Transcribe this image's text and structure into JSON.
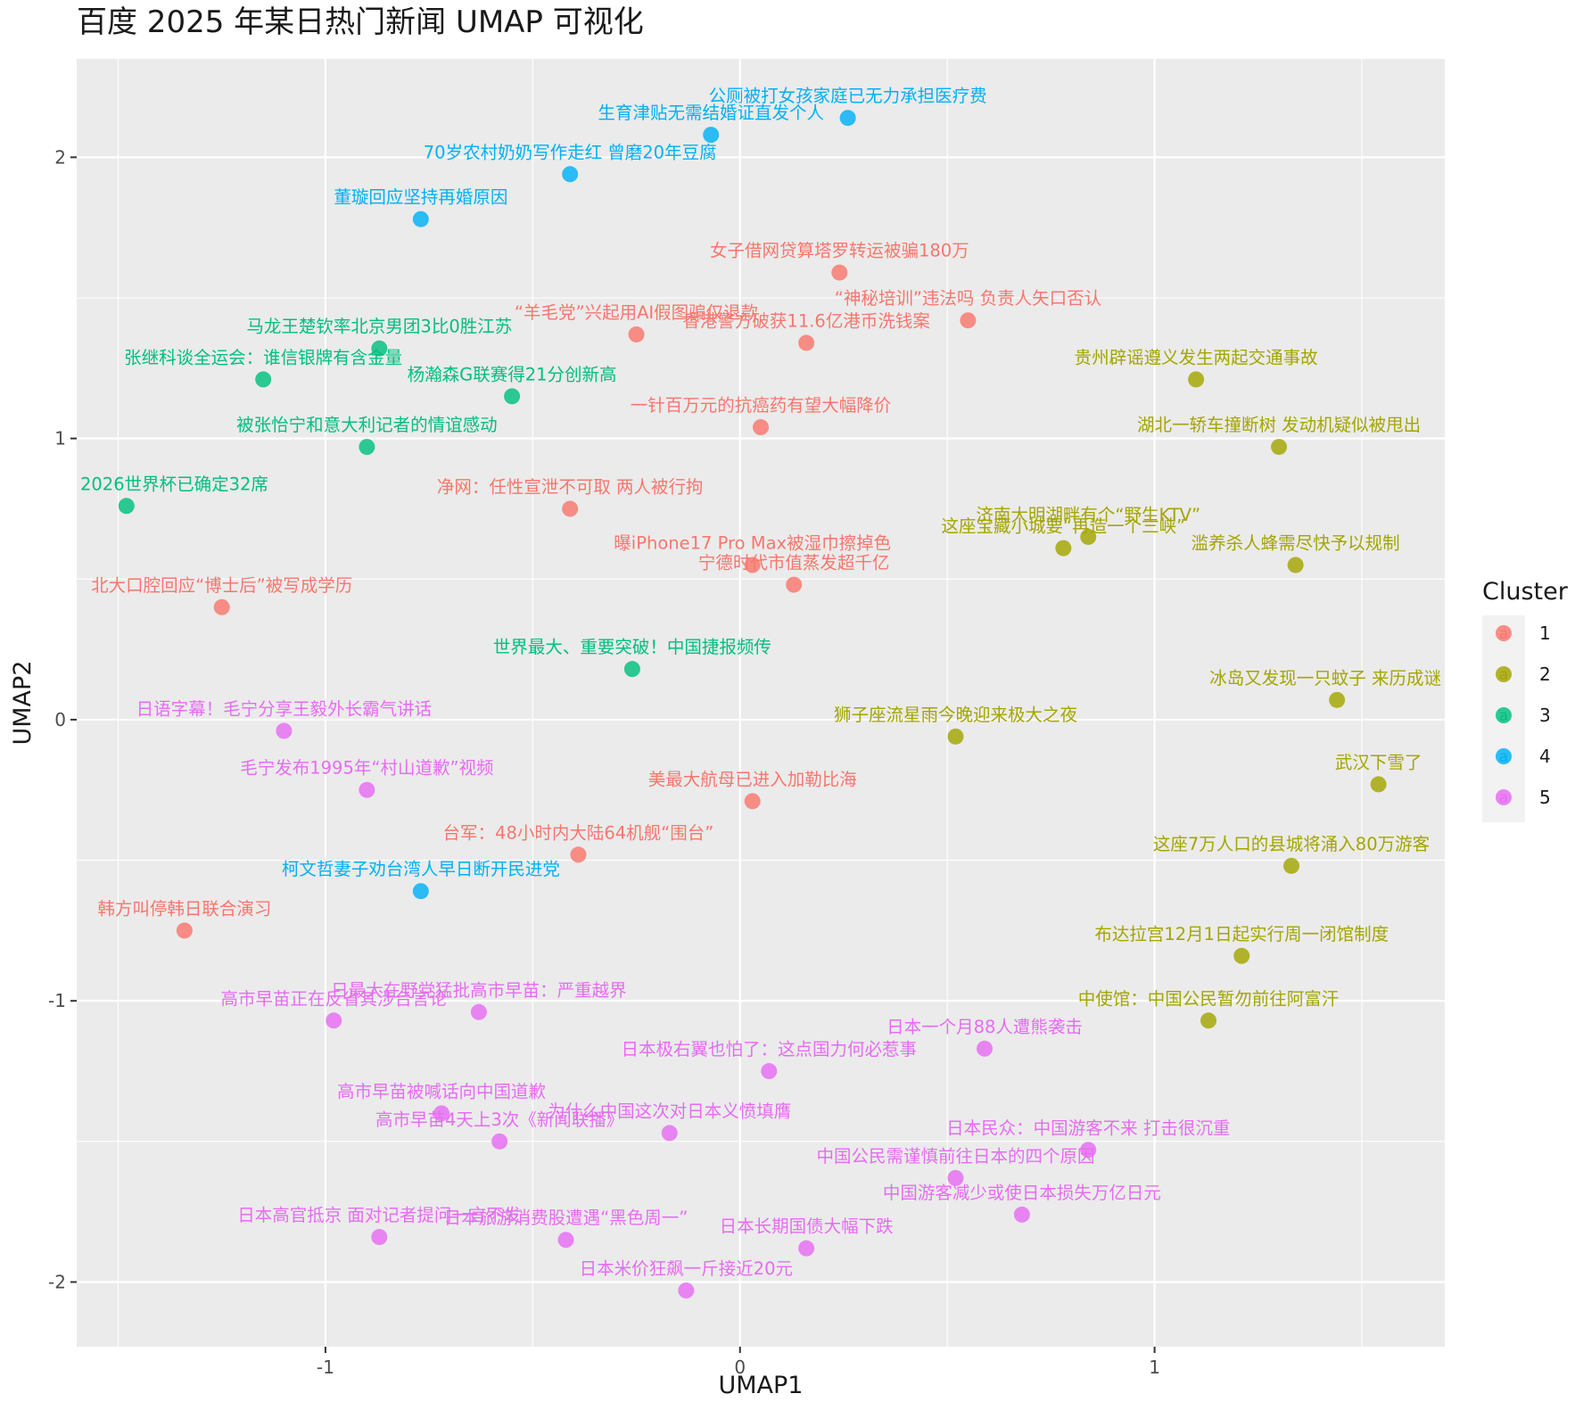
{
  "chart_data": {
    "type": "scatter",
    "title": "百度 2025 年某日热门新闻 UMAP 可视化",
    "xlabel": "UMAP1",
    "ylabel": "UMAP2",
    "xlim": [
      -1.6,
      1.7
    ],
    "ylim": [
      -2.23,
      2.35
    ],
    "x_ticks": [
      {
        "value": -1,
        "label": "-1"
      },
      {
        "value": 0,
        "label": "0"
      },
      {
        "value": 1,
        "label": "1"
      }
    ],
    "y_ticks": [
      {
        "value": -2,
        "label": "-2"
      },
      {
        "value": -1,
        "label": "-1"
      },
      {
        "value": 0,
        "label": "0"
      },
      {
        "value": 1,
        "label": "1"
      },
      {
        "value": 2,
        "label": "2"
      }
    ],
    "grid": true,
    "legend": {
      "title": "Cluster",
      "position": "right",
      "entries": [
        {
          "label": "1",
          "color": "#F8766D"
        },
        {
          "label": "2",
          "color": "#A3A500"
        },
        {
          "label": "3",
          "color": "#00BF7D"
        },
        {
          "label": "4",
          "color": "#00B0F6"
        },
        {
          "label": "5",
          "color": "#E76BF3"
        }
      ]
    },
    "series": [
      {
        "cluster": "1",
        "color": "#F8766D",
        "points": [
          {
            "x": 0.24,
            "y": 1.59,
            "label": "女子借网贷算塔罗转运被骗180万"
          },
          {
            "x": 0.55,
            "y": 1.42,
            "label": "“神秘培训”违法吗 负责人矢口否认"
          },
          {
            "x": -0.25,
            "y": 1.37,
            "label": "“羊毛党”兴起用AI假图骗仅退款"
          },
          {
            "x": 0.16,
            "y": 1.34,
            "label": "香港警方破获11.6亿港币洗钱案"
          },
          {
            "x": 0.05,
            "y": 1.04,
            "label": "一针百万元的抗癌药有望大幅降价"
          },
          {
            "x": -0.41,
            "y": 0.75,
            "label": "净网：任性宣泄不可取 两人被行拘"
          },
          {
            "x": 0.03,
            "y": 0.55,
            "label": "曝iPhone17 Pro Max被湿巾擦掉色"
          },
          {
            "x": 0.13,
            "y": 0.48,
            "label": "宁德时代市值蒸发超千亿"
          },
          {
            "x": -1.25,
            "y": 0.4,
            "label": "北大口腔回应“博士后”被写成学历"
          },
          {
            "x": 0.03,
            "y": -0.29,
            "label": "美最大航母已进入加勒比海"
          },
          {
            "x": -0.39,
            "y": -0.48,
            "label": "台军：48小时内大陆64机舰“围台”"
          },
          {
            "x": -1.34,
            "y": -0.75,
            "label": "韩方叫停韩日联合演习"
          }
        ]
      },
      {
        "cluster": "2",
        "color": "#A3A500",
        "points": [
          {
            "x": 1.1,
            "y": 1.21,
            "label": "贵州辟谣遵义发生两起交通事故"
          },
          {
            "x": 1.3,
            "y": 0.97,
            "label": "湖北一轿车撞断树 发动机疑似被甩出"
          },
          {
            "x": 0.84,
            "y": 0.65,
            "label": "济南大明湖畔有个“野生KTV”"
          },
          {
            "x": 0.78,
            "y": 0.61,
            "label": "这座宝藏小城要“再造一个三峡”"
          },
          {
            "x": 1.34,
            "y": 0.55,
            "label": "滥养杀人蜂需尽快予以规制"
          },
          {
            "x": 1.44,
            "y": 0.07,
            "label": "冰岛又发现一只蚊子 来历成谜"
          },
          {
            "x": 0.52,
            "y": -0.06,
            "label": "狮子座流星雨今晚迎来极大之夜"
          },
          {
            "x": 1.54,
            "y": -0.23,
            "label": "武汉下雪了"
          },
          {
            "x": 1.33,
            "y": -0.52,
            "label": "这座7万人口的县城将涌入80万游客"
          },
          {
            "x": 1.21,
            "y": -0.84,
            "label": "布达拉宫12月1日起实行周一闭馆制度"
          },
          {
            "x": 1.13,
            "y": -1.07,
            "label": "中使馆：中国公民暂勿前往阿富汗"
          }
        ]
      },
      {
        "cluster": "3",
        "color": "#00BF7D",
        "points": [
          {
            "x": -0.87,
            "y": 1.32,
            "label": "马龙王楚钦率北京男团3比0胜江苏"
          },
          {
            "x": -1.15,
            "y": 1.21,
            "label": "张继科谈全运会：谁信银牌有含金量"
          },
          {
            "x": -0.55,
            "y": 1.15,
            "label": "杨瀚森G联赛得21分创新高"
          },
          {
            "x": -0.9,
            "y": 0.97,
            "label": "被张怡宁和意大利记者的情谊感动"
          },
          {
            "x": -1.48,
            "y": 0.76,
            "label": "2026世界杯已确定32席"
          },
          {
            "x": -0.26,
            "y": 0.18,
            "label": "世界最大、重要突破！中国捷报频传"
          }
        ]
      },
      {
        "cluster": "4",
        "color": "#00B0F6",
        "points": [
          {
            "x": 0.26,
            "y": 2.14,
            "label": "公厕被打女孩家庭已无力承担医疗费"
          },
          {
            "x": -0.07,
            "y": 2.08,
            "label": "生育津贴无需结婚证直发个人"
          },
          {
            "x": -0.41,
            "y": 1.94,
            "label": "70岁农村奶奶写作走红 曾磨20年豆腐"
          },
          {
            "x": -0.77,
            "y": 1.78,
            "label": "董璇回应坚持再婚原因"
          },
          {
            "x": -0.77,
            "y": -0.61,
            "label": "柯文哲妻子劝台湾人早日断开民进党"
          }
        ]
      },
      {
        "cluster": "5",
        "color": "#E76BF3",
        "points": [
          {
            "x": -1.1,
            "y": -0.04,
            "label": "日语字幕！毛宁分享王毅外长霸气讲话"
          },
          {
            "x": -0.9,
            "y": -0.25,
            "label": "毛宁发布1995年“村山道歉”视频"
          },
          {
            "x": -0.63,
            "y": -1.04,
            "label": "日最大在野党猛批高市早苗：严重越界"
          },
          {
            "x": -0.98,
            "y": -1.07,
            "label": "高市早苗正在反省其涉台言论"
          },
          {
            "x": 0.59,
            "y": -1.17,
            "label": "日本一个月88人遭熊袭击"
          },
          {
            "x": 0.07,
            "y": -1.25,
            "label": "日本极右翼也怕了：这点国力何必惹事"
          },
          {
            "x": -0.72,
            "y": -1.4,
            "label": "高市早苗被喊话向中国道歉"
          },
          {
            "x": -0.17,
            "y": -1.47,
            "label": "为什么中国这次对日本义愤填膺"
          },
          {
            "x": -0.58,
            "y": -1.5,
            "label": "高市早苗4天上3次《新闻联播》"
          },
          {
            "x": 0.84,
            "y": -1.53,
            "label": "日本民众：中国游客不来 打击很沉重"
          },
          {
            "x": 0.52,
            "y": -1.63,
            "label": "中国公民需谨慎前往日本的四个原因"
          },
          {
            "x": 0.68,
            "y": -1.76,
            "label": "中国游客减少或使日本损失万亿日元"
          },
          {
            "x": -0.87,
            "y": -1.84,
            "label": "日本高官抵京 面对记者提问一言不发"
          },
          {
            "x": -0.42,
            "y": -1.85,
            "label": "日本旅游消费股遭遇“黑色周一”"
          },
          {
            "x": 0.16,
            "y": -1.88,
            "label": "日本长期国债大幅下跌"
          },
          {
            "x": -0.13,
            "y": -2.03,
            "label": "日本米价狂飙一斤接近20元"
          }
        ]
      }
    ]
  }
}
